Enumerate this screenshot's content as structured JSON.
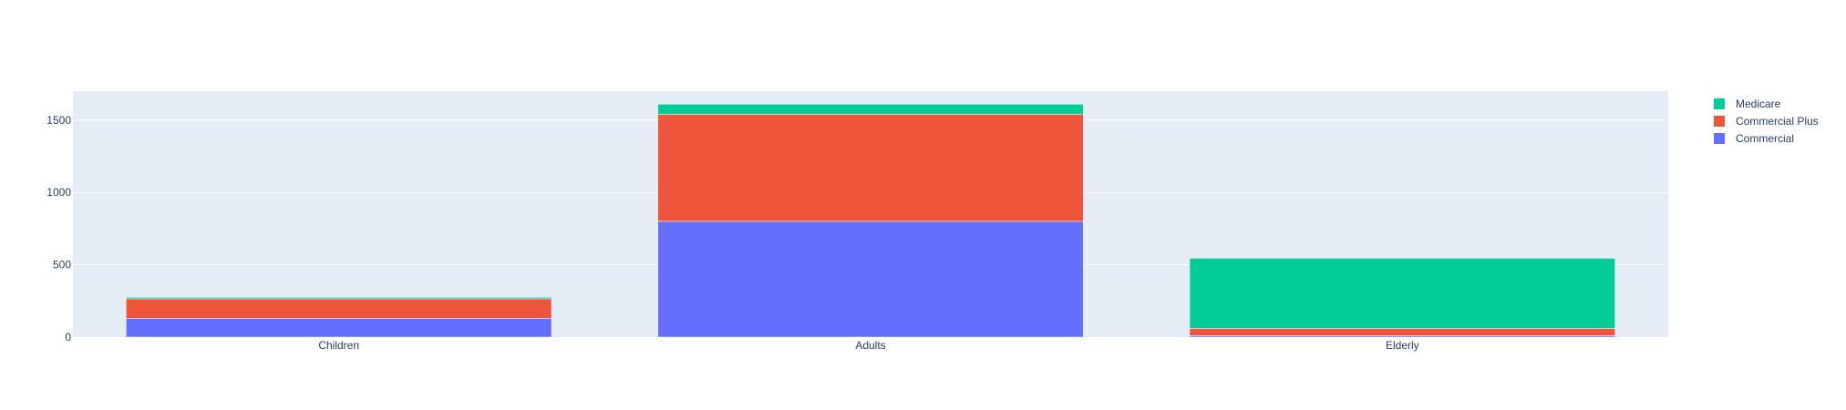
{
  "chart_data": {
    "type": "bar",
    "barmode": "stack",
    "categories": [
      "Children",
      "Adults",
      "Elderly"
    ],
    "series": [
      {
        "name": "Commercial",
        "color": "#636efa",
        "values": [
          130,
          800,
          10
        ]
      },
      {
        "name": "Commercial Plus",
        "color": "#ef553b",
        "values": [
          135,
          740,
          50
        ]
      },
      {
        "name": "Medicare",
        "color": "#00cc96",
        "values": [
          10,
          70,
          485
        ]
      }
    ],
    "ylim": [
      0,
      1700
    ],
    "yticks": [
      0,
      500,
      1000,
      1500
    ],
    "ytick_labels": [
      "0",
      "500",
      "1000",
      "1500"
    ],
    "grid": true,
    "plot_background": "#e5ecf6",
    "legend": {
      "placement": "top-right",
      "order": [
        "Medicare",
        "Commercial Plus",
        "Commercial"
      ]
    }
  }
}
